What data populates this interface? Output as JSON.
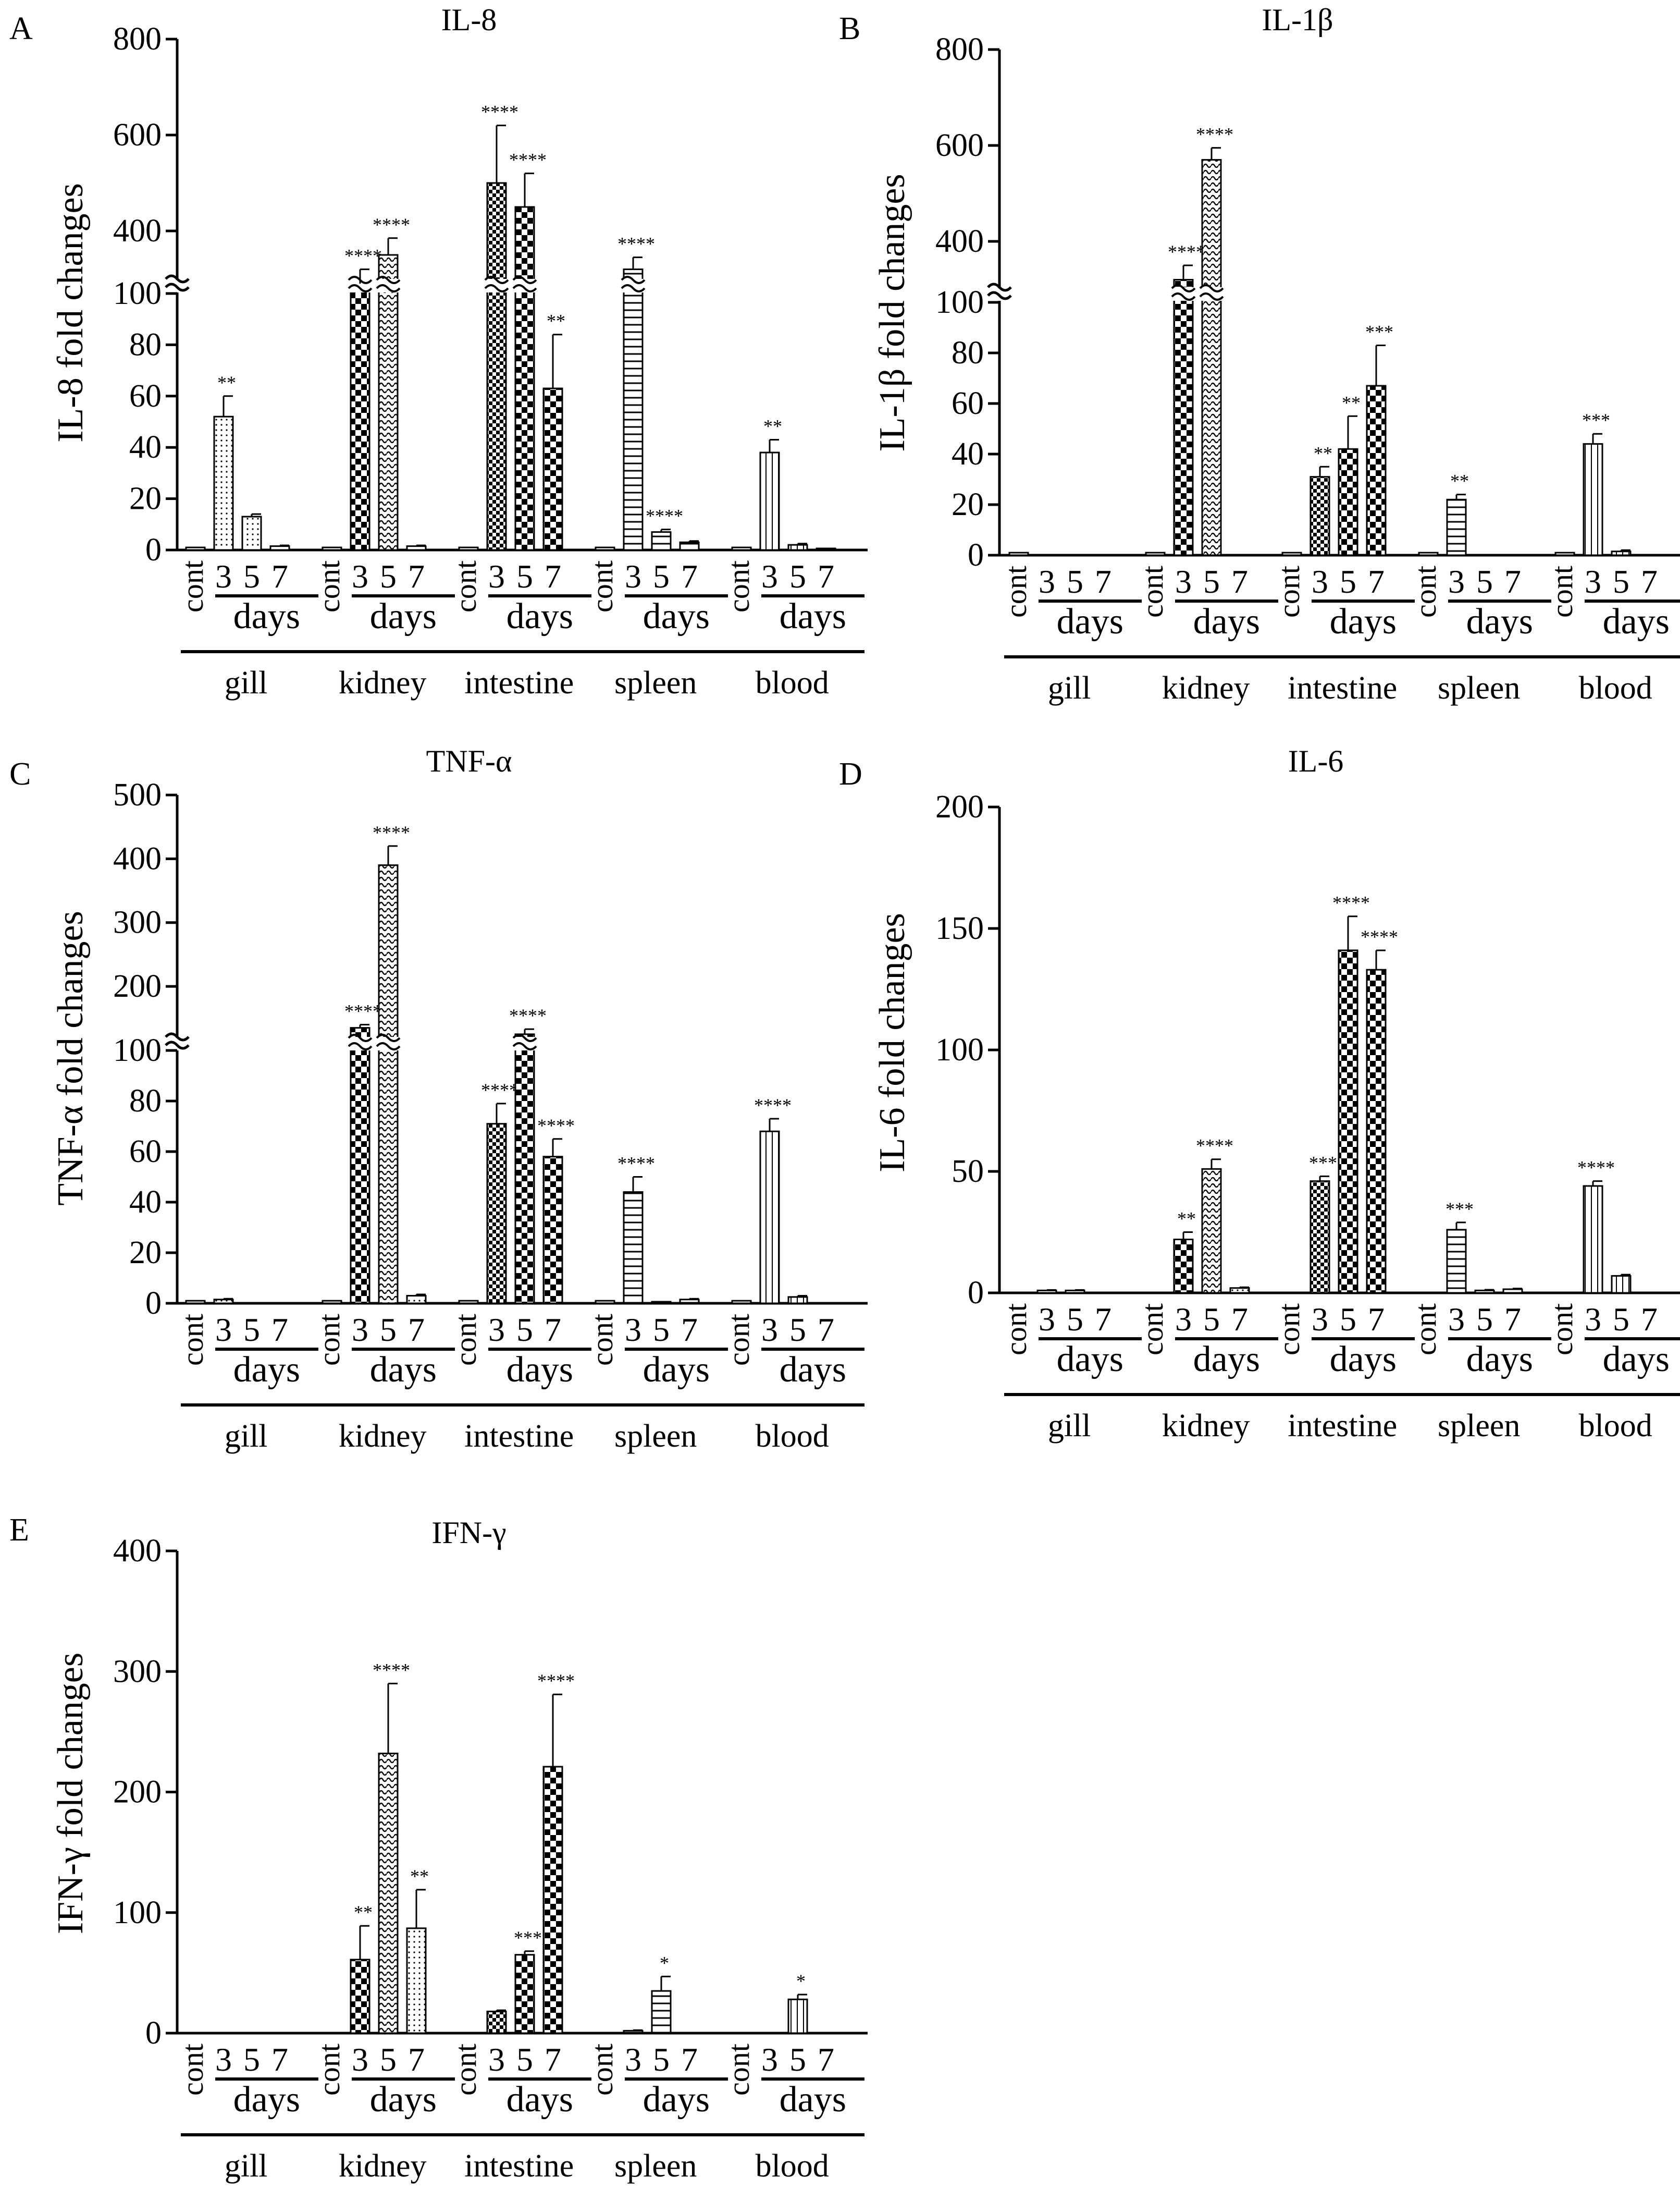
{
  "figure": {
    "group_labels": {
      "cont": "cont",
      "days": "days",
      "days_ticks": [
        "3",
        "5",
        "7"
      ]
    },
    "tissues": [
      "gill",
      "kidney",
      "intestine",
      "spleen",
      "blood"
    ]
  },
  "chart_data": [
    {
      "panel": "A",
      "type": "bar",
      "title": "IL-8",
      "ylabel": "IL-8 fold changes",
      "ylim": [
        0,
        800
      ],
      "axis_break": [
        100,
        300
      ],
      "yticks": [
        0,
        20,
        40,
        60,
        80,
        100,
        400,
        600,
        800
      ],
      "categories": [
        "gill",
        "kidney",
        "intestine",
        "spleen",
        "blood"
      ],
      "series": [
        {
          "name": "cont",
          "values": [
            1,
            1,
            1,
            1,
            1
          ],
          "errors": [
            0,
            0,
            0,
            0,
            0
          ],
          "stars": [
            "",
            "",
            "",
            "",
            ""
          ]
        },
        {
          "name": "3 days",
          "values": [
            52,
            290,
            500,
            320,
            38
          ],
          "errors": [
            8,
            30,
            120,
            25,
            5
          ],
          "stars": [
            "**",
            "****",
            "****",
            "****",
            "**"
          ]
        },
        {
          "name": "5 days",
          "values": [
            13,
            350,
            450,
            7,
            2
          ],
          "errors": [
            1,
            35,
            70,
            1,
            0.5
          ],
          "stars": [
            "",
            "****",
            "****",
            "****",
            ""
          ]
        },
        {
          "name": "7 days",
          "values": [
            1.5,
            1.5,
            63,
            3,
            0.5
          ],
          "errors": [
            0.3,
            0.3,
            21,
            0.5,
            0.1
          ],
          "stars": [
            "",
            "",
            "**",
            "",
            ""
          ]
        }
      ]
    },
    {
      "panel": "B",
      "type": "bar",
      "title": "IL-1β",
      "ylabel": "IL-1β fold changes",
      "ylim": [
        0,
        800
      ],
      "axis_break": [
        100,
        300
      ],
      "yticks": [
        0,
        20,
        40,
        60,
        80,
        100,
        400,
        600,
        800
      ],
      "categories": [
        "gill",
        "kidney",
        "intestine",
        "spleen",
        "blood"
      ],
      "series": [
        {
          "name": "cont",
          "values": [
            1,
            1,
            1,
            1,
            1
          ],
          "errors": [
            0,
            0,
            0,
            0,
            0
          ],
          "stars": [
            "",
            "",
            "",
            "",
            ""
          ]
        },
        {
          "name": "3 days",
          "values": [
            0,
            320,
            31,
            22,
            44
          ],
          "errors": [
            0,
            30,
            4,
            2,
            4
          ],
          "stars": [
            "",
            "****",
            "**",
            "**",
            "***"
          ]
        },
        {
          "name": "5 days",
          "values": [
            0,
            570,
            42,
            0,
            1.5
          ],
          "errors": [
            0,
            25,
            13,
            0,
            0.5
          ],
          "stars": [
            "",
            "****",
            "**",
            "",
            ""
          ]
        },
        {
          "name": "7 days",
          "values": [
            0,
            0,
            67,
            0,
            0
          ],
          "errors": [
            0,
            0,
            16,
            0,
            0
          ],
          "stars": [
            "",
            "",
            "***",
            "",
            ""
          ]
        }
      ]
    },
    {
      "panel": "C",
      "type": "bar",
      "title": "TNF-α",
      "ylabel": "TNF-α fold changes",
      "ylim": [
        0,
        500
      ],
      "axis_break": [
        100,
        120
      ],
      "yticks": [
        0,
        20,
        40,
        60,
        80,
        100,
        200,
        300,
        400,
        500
      ],
      "categories": [
        "gill",
        "kidney",
        "intestine",
        "spleen",
        "blood"
      ],
      "series": [
        {
          "name": "cont",
          "values": [
            1,
            1,
            1,
            1,
            1
          ],
          "errors": [
            0,
            0,
            0,
            0,
            0
          ],
          "stars": [
            "",
            "",
            "",
            "",
            ""
          ]
        },
        {
          "name": "3 days",
          "values": [
            1.5,
            135,
            71,
            44,
            68
          ],
          "errors": [
            0.3,
            5,
            8,
            6,
            5
          ],
          "stars": [
            "",
            "****",
            "****",
            "****",
            "****"
          ]
        },
        {
          "name": "5 days",
          "values": [
            0,
            390,
            125,
            0.5,
            2.5
          ],
          "errors": [
            0,
            30,
            8,
            0.1,
            0.5
          ],
          "stars": [
            "",
            "****",
            "****",
            "",
            ""
          ]
        },
        {
          "name": "7 days",
          "values": [
            0,
            3,
            58,
            1.5,
            0
          ],
          "errors": [
            0,
            0.5,
            7,
            0.3,
            0
          ],
          "stars": [
            "",
            "",
            "****",
            "",
            ""
          ]
        }
      ]
    },
    {
      "panel": "D",
      "type": "bar",
      "title": "IL-6",
      "ylabel": "IL-6 fold changes",
      "ylim": [
        0,
        200
      ],
      "yticks": [
        0,
        50,
        100,
        150,
        200
      ],
      "categories": [
        "gill",
        "kidney",
        "intestine",
        "spleen",
        "blood"
      ],
      "series": [
        {
          "name": "cont",
          "values": [
            0,
            0,
            0,
            0,
            0
          ],
          "errors": [
            0,
            0,
            0,
            0,
            0
          ],
          "stars": [
            "",
            "",
            "",
            "",
            ""
          ]
        },
        {
          "name": "3 days",
          "values": [
            1,
            22,
            46,
            26,
            44
          ],
          "errors": [
            0.2,
            3,
            2,
            3,
            2
          ],
          "stars": [
            "",
            "**",
            "***",
            "***",
            "****"
          ]
        },
        {
          "name": "5 days",
          "values": [
            1,
            51,
            141,
            1,
            7
          ],
          "errors": [
            0.2,
            4,
            14,
            0.3,
            0.5
          ],
          "stars": [
            "",
            "****",
            "****",
            "",
            ""
          ]
        },
        {
          "name": "7 days",
          "values": [
            0,
            2,
            133,
            1.5,
            0
          ],
          "errors": [
            0,
            0.3,
            8,
            0.3,
            0
          ],
          "stars": [
            "",
            "",
            "****",
            "",
            ""
          ]
        }
      ]
    },
    {
      "panel": "E",
      "type": "bar",
      "title": "IFN-γ",
      "ylabel": "IFN-γ fold changes",
      "ylim": [
        0,
        400
      ],
      "yticks": [
        0,
        100,
        200,
        300,
        400
      ],
      "categories": [
        "gill",
        "kidney",
        "intestine",
        "spleen",
        "blood"
      ],
      "series": [
        {
          "name": "cont",
          "values": [
            0,
            0,
            0,
            0,
            0
          ],
          "errors": [
            0,
            0,
            0,
            0,
            0
          ],
          "stars": [
            "",
            "",
            "",
            "",
            ""
          ]
        },
        {
          "name": "3 days",
          "values": [
            0,
            61,
            18,
            2,
            0
          ],
          "errors": [
            0,
            28,
            1,
            0.5,
            0
          ],
          "stars": [
            "",
            "**",
            "",
            "",
            ""
          ]
        },
        {
          "name": "5 days",
          "values": [
            0,
            232,
            65,
            35,
            28
          ],
          "errors": [
            0,
            58,
            3,
            12,
            4
          ],
          "stars": [
            "",
            "****",
            "***",
            "*",
            "*"
          ]
        },
        {
          "name": "7 days",
          "values": [
            0,
            87,
            221,
            0,
            0
          ],
          "errors": [
            0,
            32,
            60,
            0,
            0
          ],
          "stars": [
            "",
            "**",
            "****",
            "",
            ""
          ]
        }
      ]
    }
  ]
}
